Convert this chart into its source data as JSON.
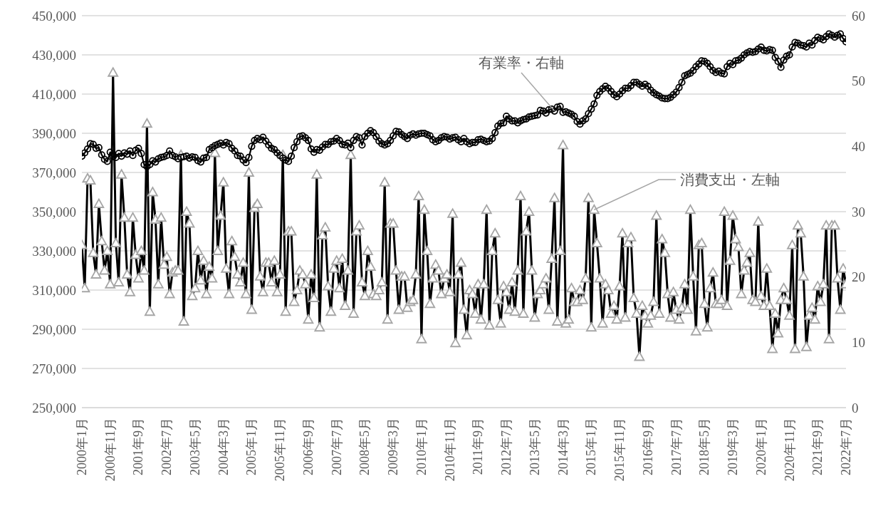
{
  "chart_data": {
    "type": "line",
    "categories": [
      "2000年1月",
      null,
      null,
      null,
      null,
      null,
      null,
      null,
      null,
      null,
      "2000年11月",
      null,
      null,
      null,
      null,
      null,
      null,
      null,
      null,
      null,
      "2001年9月",
      null,
      null,
      null,
      null,
      null,
      null,
      null,
      null,
      null,
      "2002年7月",
      null,
      null,
      null,
      null,
      null,
      null,
      null,
      null,
      null,
      "2003年5月",
      null,
      null,
      null,
      null,
      null,
      null,
      null,
      null,
      null,
      "2004年3月",
      null,
      null,
      null,
      null,
      null,
      null,
      null,
      null,
      null,
      "2005年1月",
      null,
      null,
      null,
      null,
      null,
      null,
      null,
      null,
      null,
      "2005年11月",
      null,
      null,
      null,
      null,
      null,
      null,
      null,
      null,
      null,
      "2006年9月",
      null,
      null,
      null,
      null,
      null,
      null,
      null,
      null,
      null,
      "2007年7月",
      null,
      null,
      null,
      null,
      null,
      null,
      null,
      null,
      null,
      "2008年5月",
      null,
      null,
      null,
      null,
      null,
      null,
      null,
      null,
      null,
      "2009年3月",
      null,
      null,
      null,
      null,
      null,
      null,
      null,
      null,
      null,
      "2010年1月",
      null,
      null,
      null,
      null,
      null,
      null,
      null,
      null,
      null,
      "2010年11月",
      null,
      null,
      null,
      null,
      null,
      null,
      null,
      null,
      null,
      "2011年9月",
      null,
      null,
      null,
      null,
      null,
      null,
      null,
      null,
      null,
      "2012年7月",
      null,
      null,
      null,
      null,
      null,
      null,
      null,
      null,
      null,
      "2013年5月",
      null,
      null,
      null,
      null,
      null,
      null,
      null,
      null,
      null,
      "2014年3月",
      null,
      null,
      null,
      null,
      null,
      null,
      null,
      null,
      null,
      "2015年1月",
      null,
      null,
      null,
      null,
      null,
      null,
      null,
      null,
      null,
      "2015年11月",
      null,
      null,
      null,
      null,
      null,
      null,
      null,
      null,
      null,
      "2016年9月",
      null,
      null,
      null,
      null,
      null,
      null,
      null,
      null,
      null,
      "2017年7月",
      null,
      null,
      null,
      null,
      null,
      null,
      null,
      null,
      null,
      "2018年5月",
      null,
      null,
      null,
      null,
      null,
      null,
      null,
      null,
      null,
      "2019年3月",
      null,
      null,
      null,
      null,
      null,
      null,
      null,
      null,
      null,
      "2020年1月",
      null,
      null,
      null,
      null,
      null,
      null,
      null,
      null,
      null,
      "2020年11月",
      null,
      null,
      null,
      null,
      null,
      null,
      null,
      null,
      null,
      "2021年9月",
      null,
      null,
      null,
      null,
      null,
      null,
      null,
      null,
      null,
      "2022年7月"
    ],
    "series": [
      {
        "name": "消費支出・左軸",
        "color": "#000000",
        "marker": "triangle",
        "values": [
          333000,
          311000,
          367000,
          366000,
          329000,
          318000,
          354000,
          335000,
          320000,
          330000,
          313000,
          421000,
          334000,
          314000,
          369000,
          347000,
          318000,
          309000,
          347000,
          328000,
          316000,
          330000,
          320000,
          395000,
          299000,
          360000,
          346000,
          313000,
          347000,
          323000,
          327000,
          308000,
          319000,
          320000,
          320000,
          379000,
          294000,
          350000,
          344000,
          307000,
          311000,
          330000,
          315000,
          325000,
          308000,
          322000,
          316000,
          380000,
          330000,
          348000,
          365000,
          321000,
          308000,
          335000,
          327000,
          318000,
          314000,
          324000,
          308000,
          370000,
          300000,
          352000,
          354000,
          317000,
          309000,
          324000,
          324000,
          314000,
          325000,
          309000,
          318000,
          379000,
          299000,
          340000,
          340000,
          304000,
          310000,
          320000,
          318000,
          313000,
          295000,
          318000,
          306000,
          369000,
          291000,
          338000,
          342000,
          312000,
          299000,
          321000,
          325000,
          311000,
          326000,
          302000,
          320000,
          379000,
          298000,
          340000,
          343000,
          314000,
          307000,
          330000,
          322000,
          308000,
          307000,
          310000,
          314000,
          365000,
          295000,
          344000,
          344000,
          320000,
          300000,
          317000,
          317000,
          301000,
          304000,
          305000,
          318000,
          358000,
          285000,
          351000,
          330000,
          303000,
          316000,
          323000,
          320000,
          308000,
          316000,
          318000,
          309000,
          349000,
          283000,
          318000,
          324000,
          300000,
          287000,
          310000,
          308000,
          298000,
          313000,
          295000,
          313000,
          351000,
          292000,
          330000,
          339000,
          305000,
          293000,
          312000,
          309000,
          300000,
          314000,
          299000,
          320000,
          358000,
          298000,
          340000,
          350000,
          320000,
          296000,
          308000,
          310000,
          313000,
          316000,
          300000,
          326000,
          357000,
          294000,
          330000,
          384000,
          293000,
          295000,
          311000,
          304000,
          304000,
          310000,
          305000,
          316000,
          357000,
          291000,
          351000,
          334000,
          316000,
          293000,
          313000,
          310000,
          298000,
          302000,
          295000,
          312000,
          339000,
          296000,
          334000,
          337000,
          306000,
          298000,
          276000,
          302000,
          297000,
          293000,
          297000,
          304000,
          348000,
          298000,
          336000,
          329000,
          308000,
          296000,
          309000,
          300000,
          295000,
          301000,
          313000,
          300000,
          351000,
          317000,
          289000,
          333000,
          334000,
          303000,
          291000,
          311000,
          319000,
          303000,
          303000,
          305000,
          350000,
          302000,
          325000,
          348000,
          336000,
          332000,
          308000,
          320000,
          324000,
          329000,
          305000,
          304000,
          345000,
          307000,
          302000,
          321000,
          302000,
          280000,
          298000,
          288000,
          305000,
          311000,
          305000,
          297000,
          333000,
          280000,
          343000,
          339000,
          317000,
          281000,
          297000,
          301000,
          295000,
          312000,
          304000,
          313000,
          343000,
          285000,
          343000,
          343000,
          316000,
          300000,
          321000,
          313000
        ]
      },
      {
        "name": "有業率・右軸",
        "color": "#000000",
        "marker": "circle",
        "axis": "y2",
        "values": [
          38.5,
          39.0,
          39.6,
          40.4,
          40.3,
          39.7,
          39.8,
          38.7,
          38.0,
          37.7,
          39.1,
          38.4,
          38.3,
          38.9,
          38.5,
          39.0,
          38.8,
          39.3,
          38.6,
          39.4,
          39.7,
          38.9,
          37.2,
          36.9,
          37.2,
          37.8,
          37.6,
          38.1,
          38.3,
          38.4,
          38.6,
          39.3,
          38.6,
          38.4,
          38.1,
          38.3,
          38.4,
          38.5,
          38.2,
          38.4,
          38.3,
          37.8,
          37.6,
          38.2,
          38.3,
          39.5,
          39.8,
          40.1,
          40.3,
          40.5,
          40.2,
          40.6,
          40.4,
          39.7,
          39.3,
          38.6,
          38.5,
          37.9,
          37.5,
          38.3,
          40.0,
          40.9,
          41.2,
          41.0,
          41.4,
          40.8,
          40.2,
          39.7,
          39.5,
          39.0,
          38.6,
          38.2,
          37.9,
          37.7,
          38.5,
          39.8,
          40.7,
          41.5,
          41.6,
          41.3,
          40.9,
          39.6,
          39.1,
          39.5,
          39.4,
          39.9,
          40.3,
          40.3,
          40.7,
          40.8,
          41.2,
          40.9,
          40.3,
          40.2,
          40.5,
          39.8,
          40.9,
          41.5,
          41.3,
          40.2,
          41.5,
          42.0,
          42.4,
          42.1,
          41.5,
          40.8,
          40.4,
          40.2,
          40.4,
          40.9,
          41.6,
          42.3,
          42.2,
          41.8,
          41.5,
          41.2,
          41.7,
          41.9,
          41.7,
          41.9,
          42.0,
          42.0,
          41.8,
          41.6,
          41.0,
          40.7,
          40.9,
          41.3,
          41.5,
          41.4,
          41.1,
          41.3,
          41.4,
          41.0,
          40.7,
          41.2,
          40.7,
          40.4,
          40.6,
          40.6,
          41.0,
          41.1,
          40.9,
          40.7,
          40.8,
          41.2,
          42.1,
          43.1,
          43.5,
          43.6,
          44.6,
          44.2,
          43.9,
          43.9,
          43.6,
          43.9,
          44.1,
          44.2,
          44.5,
          44.6,
          44.7,
          44.8,
          45.5,
          45.4,
          45.1,
          45.6,
          45.7,
          45.4,
          46.0,
          46.1,
          45.2,
          45.3,
          45.1,
          44.9,
          44.6,
          43.8,
          43.4,
          43.9,
          44.2,
          45.0,
          45.7,
          46.5,
          47.8,
          48.4,
          48.8,
          49.2,
          48.9,
          48.4,
          47.9,
          47.6,
          48.0,
          48.5,
          48.9,
          48.9,
          49.3,
          49.8,
          49.8,
          49.5,
          49.2,
          49.5,
          49.2,
          48.6,
          48.2,
          47.9,
          47.7,
          47.4,
          47.3,
          47.3,
          47.5,
          47.9,
          48.3,
          49.0,
          49.8,
          50.8,
          51.0,
          51.2,
          51.6,
          52.2,
          52.6,
          53.1,
          53.0,
          52.7,
          52.2,
          51.6,
          51.3,
          51.5,
          51.2,
          51.1,
          52.2,
          52.7,
          52.5,
          53.1,
          53.2,
          53.5,
          54.0,
          54.3,
          54.5,
          54.4,
          54.5,
          54.9,
          55.2,
          54.7,
          54.6,
          54.8,
          54.7,
          53.6,
          53.0,
          52.1,
          53.2,
          53.8,
          54.0,
          55.2,
          55.9,
          55.8,
          55.5,
          55.4,
          55.2,
          55.8,
          55.5,
          56.2,
          56.7,
          56.5,
          56.3,
          56.8,
          57.2,
          57.0,
          56.7,
          57.0,
          57.2,
          56.5,
          56.0
        ]
      }
    ],
    "ylim": [
      250000,
      450000
    ],
    "yticks": [
      {
        "value": 250000,
        "label": "250,000"
      },
      {
        "value": 270000,
        "label": "270,000"
      },
      {
        "value": 290000,
        "label": "290,000"
      },
      {
        "value": 310000,
        "label": "310,000"
      },
      {
        "value": 330000,
        "label": "330,000"
      },
      {
        "value": 350000,
        "label": "350,000"
      },
      {
        "value": 370000,
        "label": "370,000"
      },
      {
        "value": 390000,
        "label": "390,000"
      },
      {
        "value": 410000,
        "label": "410,000"
      },
      {
        "value": 430000,
        "label": "430,000"
      },
      {
        "value": 450000,
        "label": "450,000"
      }
    ],
    "y2lim": [
      0,
      60
    ],
    "y2ticks": [
      0,
      10,
      20,
      30,
      40,
      50,
      60
    ],
    "grid": "y",
    "legend": false
  }
}
